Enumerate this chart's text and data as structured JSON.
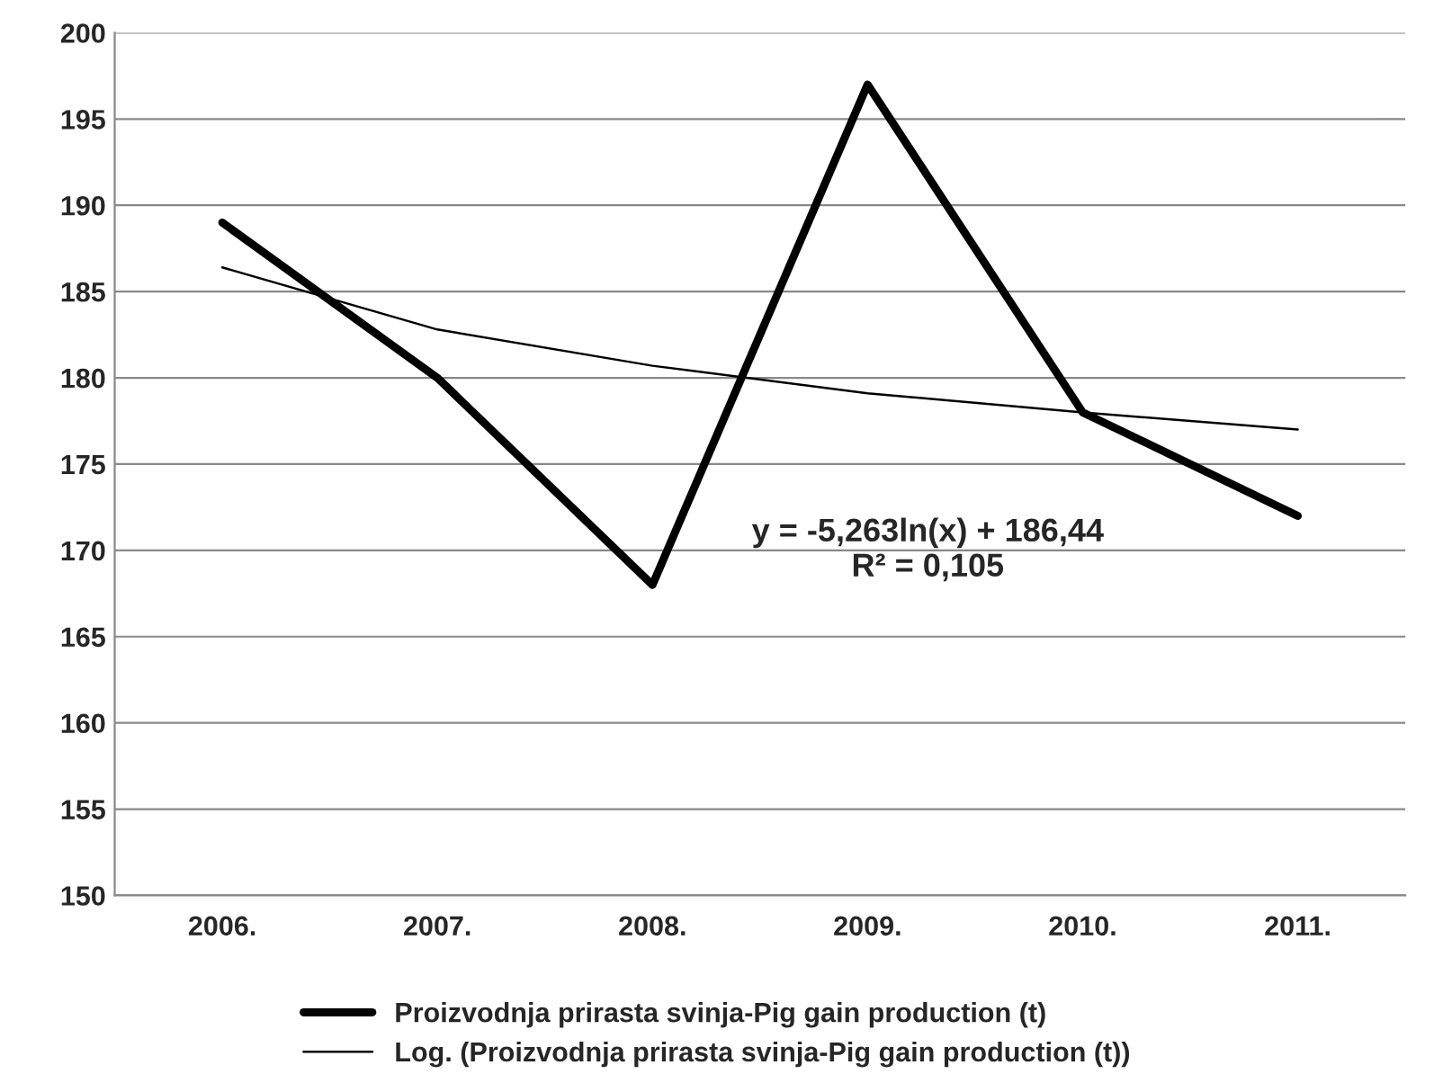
{
  "chart_data": {
    "type": "line",
    "categories": [
      "2006.",
      "2007.",
      "2008.",
      "2009.",
      "2010.",
      "2011."
    ],
    "series": [
      {
        "name": "Proizvodnja prirasta svinja-Pig gain production (t)",
        "color": "#000000",
        "values": [
          189,
          180,
          168,
          197,
          178,
          172
        ]
      },
      {
        "name": "Log. (Proizvodnja prirasta svinja-Pig gain production (t))",
        "color": "#000000",
        "values": [
          186.4,
          182.8,
          180.7,
          179.1,
          178.0,
          177.0
        ]
      }
    ],
    "ylim": [
      150,
      200
    ],
    "yticks": [
      150,
      155,
      160,
      165,
      170,
      175,
      180,
      185,
      190,
      195,
      200
    ],
    "grid": "y",
    "legend": "bottom",
    "marker": "none",
    "line_style": "solid",
    "annotations": [
      "y = -5,263ln(x) + 186,44\nR² = 0,105"
    ]
  }
}
